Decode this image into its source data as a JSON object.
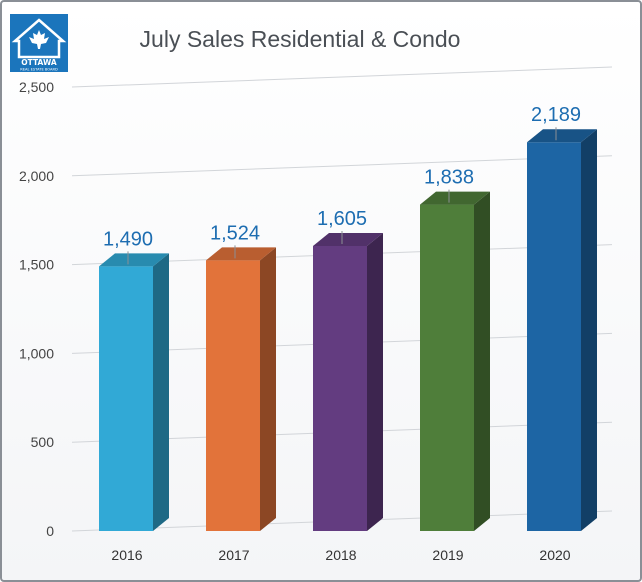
{
  "logo": {
    "text_main": "OTTAWA",
    "text_sub": "REAL ESTATE BOARD",
    "icon": "maple-leaf-house-icon",
    "color": "#1b75bc"
  },
  "chart_data": {
    "type": "bar",
    "title": "July Sales Residential & Condo",
    "categories": [
      "2016",
      "2017",
      "2018",
      "2019",
      "2020"
    ],
    "values": [
      1490,
      1524,
      1605,
      1838,
      2189
    ],
    "value_labels": [
      "1,490",
      "1,524",
      "1,605",
      "1,838",
      "2,189"
    ],
    "bar_colors": [
      "#31a9d6",
      "#e2733a",
      "#633c80",
      "#4f7e3a",
      "#1d65a4"
    ],
    "ylim": [
      0,
      2500
    ],
    "yticks": [
      0,
      500,
      1000,
      1500,
      2000,
      2500
    ],
    "ytick_labels": [
      "0",
      "500",
      "1,000",
      "1,500",
      "2,000",
      "2,500"
    ],
    "grid": true,
    "label_color": "#1d6db1",
    "xlabel": "",
    "ylabel": ""
  }
}
